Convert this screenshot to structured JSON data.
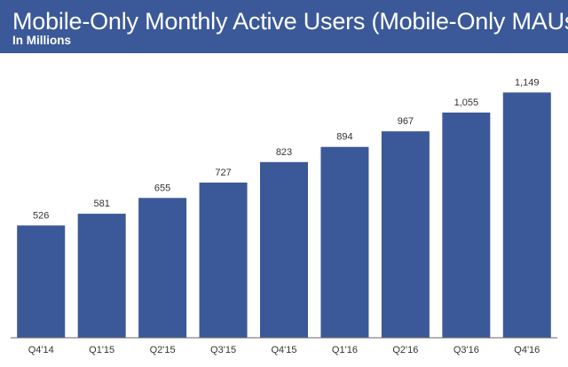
{
  "chart_data": {
    "type": "bar",
    "title": "Mobile-Only Monthly Active Users (Mobile-Only MAUs)",
    "subtitle": "In Millions",
    "categories": [
      "Q4'14",
      "Q1'15",
      "Q2'15",
      "Q3'15",
      "Q4'15",
      "Q1'16",
      "Q2'16",
      "Q3'16",
      "Q4'16"
    ],
    "values": [
      526,
      581,
      655,
      727,
      823,
      894,
      967,
      1055,
      1149
    ],
    "value_labels": [
      "526",
      "581",
      "655",
      "727",
      "823",
      "894",
      "967",
      "1,055",
      "1,149"
    ],
    "ylim": [
      0,
      1200
    ],
    "grid": false,
    "legend": "none",
    "colors": {
      "header": "#3b5998",
      "bar": "#3b5998"
    }
  }
}
